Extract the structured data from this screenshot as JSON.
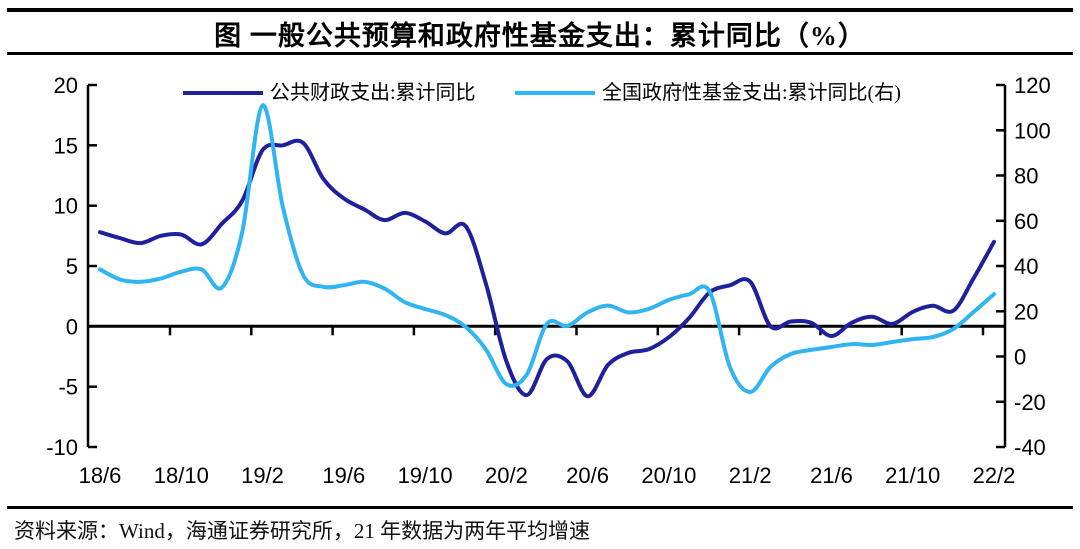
{
  "title": "图  一般公共预算和政府性基金支出：累计同比（%）",
  "source_note": "资料来源：Wind，海通证券研究所，21 年数据为两年平均增速",
  "colors": {
    "fiscal_line": "#1e219b",
    "fund_line": "#30b4f2",
    "axis": "#000000",
    "background": "#ffffff"
  },
  "chart_data": {
    "type": "line",
    "title": "图 一般公共预算和政府性基金支出：累计同比（%）",
    "grid": false,
    "legend_position": "top",
    "x_labels_shown": [
      "18/6",
      "18/10",
      "19/2",
      "19/6",
      "19/10",
      "20/2",
      "20/6",
      "20/10",
      "21/2",
      "21/6",
      "21/10",
      "22/2"
    ],
    "x_monthly": [
      "18/6",
      "18/7",
      "18/8",
      "18/9",
      "18/10",
      "18/11",
      "18/12",
      "19/1",
      "19/2",
      "19/3",
      "19/4",
      "19/5",
      "19/6",
      "19/7",
      "19/8",
      "19/9",
      "19/10",
      "19/11",
      "19/12",
      "20/1",
      "20/2",
      "20/3",
      "20/4",
      "20/5",
      "20/6",
      "20/7",
      "20/8",
      "20/9",
      "20/10",
      "20/11",
      "20/12",
      "21/1",
      "21/2",
      "21/3",
      "21/4",
      "21/5",
      "21/6",
      "21/7",
      "21/8",
      "21/9",
      "21/10",
      "21/11",
      "21/12",
      "22/1",
      "22/2"
    ],
    "left_axis": {
      "ticks": [
        20,
        15,
        10,
        5,
        0,
        -5,
        -10
      ],
      "range": [
        -10,
        20
      ]
    },
    "right_axis": {
      "ticks": [
        120,
        100,
        80,
        60,
        40,
        20,
        0,
        -20,
        -40
      ],
      "range": [
        -40,
        120
      ]
    },
    "series": [
      {
        "name": "公共财政支出:累计同比",
        "axis": "left",
        "color": "#1e219b",
        "values": [
          7.8,
          7.3,
          6.9,
          7.5,
          7.6,
          6.8,
          8.5,
          10.4,
          14.6,
          15.0,
          15.2,
          12.2,
          10.6,
          9.7,
          8.8,
          9.4,
          8.7,
          7.7,
          8.3,
          3.5,
          -2.9,
          -5.7,
          -2.7,
          -2.9,
          -5.8,
          -3.2,
          -2.2,
          -1.9,
          -0.9,
          0.7,
          2.8,
          3.4,
          3.7,
          0.0,
          0.4,
          0.3,
          -0.8,
          0.3,
          0.8,
          0.2,
          1.2,
          1.7,
          1.3,
          4.0,
          7.0
        ]
      },
      {
        "name": "全国政府性基金支出:累计同比(右)",
        "axis": "right",
        "color": "#30b4f2",
        "values": [
          38.5,
          34.0,
          33.0,
          34.5,
          37.5,
          38.5,
          30.5,
          55.0,
          111.0,
          66.0,
          36.0,
          30.8,
          31.5,
          33.0,
          30.0,
          24.0,
          21.0,
          18.3,
          13.1,
          3.0,
          -12.2,
          -8.0,
          14.5,
          13.5,
          19.5,
          22.5,
          19.5,
          21.0,
          25.0,
          27.5,
          28.8,
          -4.6,
          -15.7,
          -4.6,
          1.1,
          2.9,
          4.2,
          5.5,
          5.1,
          6.4,
          7.7,
          8.6,
          12.2,
          19.7,
          27.6
        ]
      }
    ]
  }
}
